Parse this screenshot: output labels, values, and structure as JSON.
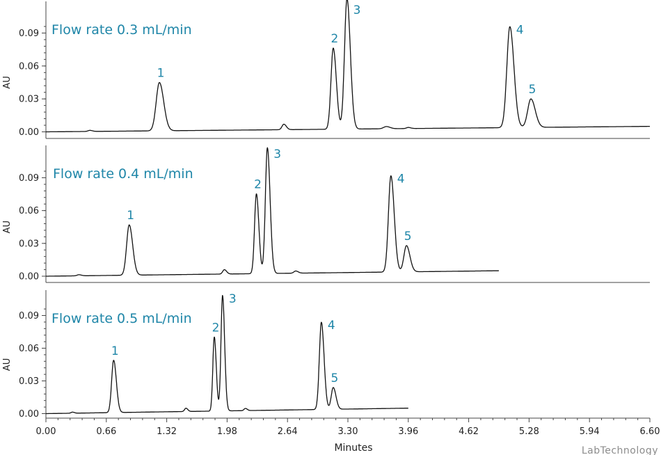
{
  "chart_data": {
    "type": "line",
    "xlabel": "Minutes",
    "xlim": [
      0,
      6.6
    ],
    "xticks": [
      "0.00",
      "0.66",
      "1.32",
      "1.98",
      "2.64",
      "3.30",
      "3.96",
      "4.62",
      "5.28",
      "5.94",
      "6.60"
    ],
    "watermark": "LabTechnology",
    "panels": [
      {
        "title": "Flow rate 0.3 mL/min",
        "ylabel": "AU",
        "ylim": [
          -0.005,
          0.1
        ],
        "yticks": [
          "0.00",
          "0.03",
          "0.06",
          "0.09"
        ],
        "x_end": 6.6,
        "baseline": {
          "start": 0.0,
          "end": 0.005
        },
        "peaks": [
          {
            "label": "1",
            "x": 1.24,
            "height": 0.044,
            "width": 0.035
          },
          {
            "label": "2",
            "x": 3.14,
            "height": 0.074,
            "width": 0.025
          },
          {
            "label": "3",
            "x": 3.29,
            "height": 0.119,
            "width": 0.027
          },
          {
            "label": "4",
            "x": 5.07,
            "height": 0.092,
            "width": 0.033
          },
          {
            "label": "5",
            "x": 5.3,
            "height": 0.026,
            "width": 0.035
          }
        ],
        "minor_peaks": [
          {
            "x": 0.48,
            "height": 0.001,
            "width": 0.02
          },
          {
            "x": 2.6,
            "height": 0.005,
            "width": 0.02
          },
          {
            "x": 3.72,
            "height": 0.002,
            "width": 0.03
          },
          {
            "x": 3.96,
            "height": 0.001,
            "width": 0.02
          }
        ]
      },
      {
        "title": "Flow rate 0.4 mL/min",
        "ylabel": "AU",
        "ylim": [
          -0.005,
          0.1
        ],
        "yticks": [
          "0.00",
          "0.03",
          "0.06",
          "0.09"
        ],
        "x_end": 4.95,
        "baseline": {
          "start": 0.0,
          "end": 0.005
        },
        "peaks": [
          {
            "label": "1",
            "x": 0.91,
            "height": 0.046,
            "width": 0.028
          },
          {
            "label": "2",
            "x": 2.3,
            "height": 0.073,
            "width": 0.02
          },
          {
            "label": "3",
            "x": 2.42,
            "height": 0.115,
            "width": 0.022
          },
          {
            "label": "4",
            "x": 3.77,
            "height": 0.088,
            "width": 0.027
          },
          {
            "label": "5",
            "x": 3.94,
            "height": 0.024,
            "width": 0.028
          }
        ],
        "minor_peaks": [
          {
            "x": 0.36,
            "height": 0.001,
            "width": 0.02
          },
          {
            "x": 1.95,
            "height": 0.004,
            "width": 0.018
          },
          {
            "x": 2.73,
            "height": 0.002,
            "width": 0.02
          }
        ]
      },
      {
        "title": "Flow rate 0.5 mL/min",
        "ylabel": "AU",
        "ylim": [
          -0.005,
          0.1
        ],
        "yticks": [
          "0.00",
          "0.03",
          "0.06",
          "0.09"
        ],
        "x_end": 3.96,
        "baseline": {
          "start": 0.0,
          "end": 0.005
        },
        "peaks": [
          {
            "label": "1",
            "x": 0.74,
            "height": 0.048,
            "width": 0.022
          },
          {
            "label": "2",
            "x": 1.84,
            "height": 0.068,
            "width": 0.016
          },
          {
            "label": "3",
            "x": 1.93,
            "height": 0.106,
            "width": 0.017
          },
          {
            "label": "4",
            "x": 3.01,
            "height": 0.08,
            "width": 0.022
          },
          {
            "label": "5",
            "x": 3.14,
            "height": 0.02,
            "width": 0.022
          }
        ],
        "minor_peaks": [
          {
            "x": 0.29,
            "height": 0.001,
            "width": 0.015
          },
          {
            "x": 1.53,
            "height": 0.003,
            "width": 0.015
          },
          {
            "x": 2.18,
            "height": 0.002,
            "width": 0.015
          }
        ]
      }
    ]
  }
}
